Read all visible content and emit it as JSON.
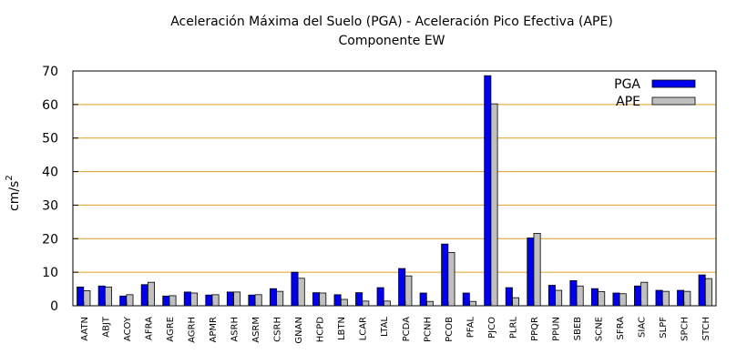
{
  "chart_data": {
    "type": "bar",
    "title": "Aceleración Máxima del Suelo (PGA) -  Aceleración Pico Efectiva (APE)",
    "subtitle": "Componente EW",
    "xlabel": "",
    "ylabel": "cm/s",
    "ylabel_sup": "2",
    "ylim": [
      0,
      70
    ],
    "yticks": [
      0,
      10,
      20,
      30,
      40,
      50,
      60,
      70
    ],
    "grid": "horizontal",
    "legend_position": "top-right",
    "categories": [
      "AATN",
      "ABJT",
      "ACOY",
      "AFRA",
      "AGRE",
      "AGRH",
      "APMR",
      "ASRH",
      "ASRM",
      "CSRH",
      "GNAN",
      "HCPD",
      "LBTN",
      "LCAR",
      "LTAL",
      "PCDA",
      "PCNH",
      "PCOB",
      "PFAL",
      "PJCO",
      "PLRL",
      "PPQR",
      "PPUN",
      "SBEB",
      "SCNE",
      "SFRA",
      "SIAC",
      "SLPF",
      "SPCH",
      "STCH"
    ],
    "series": [
      {
        "name": "PGA",
        "color": "#0000ee",
        "values": [
          5.6,
          5.9,
          2.9,
          6.3,
          2.9,
          4.1,
          3.2,
          4.1,
          3.2,
          5.1,
          10.0,
          3.9,
          3.3,
          3.9,
          5.4,
          11.1,
          3.8,
          18.4,
          3.8,
          68.6,
          5.4,
          20.2,
          6.1,
          7.5,
          5.1,
          3.8,
          5.9,
          4.6,
          4.6,
          9.2
        ]
      },
      {
        "name": "APE",
        "color": "#c0c0c0",
        "values": [
          4.5,
          5.6,
          3.3,
          7.0,
          3.0,
          3.8,
          3.3,
          4.1,
          3.3,
          4.3,
          8.2,
          3.8,
          1.9,
          1.4,
          1.4,
          8.9,
          1.3,
          15.9,
          1.3,
          60.2,
          2.4,
          21.6,
          4.6,
          5.9,
          4.2,
          3.6,
          7.0,
          4.3,
          4.3,
          8.1
        ]
      }
    ]
  }
}
